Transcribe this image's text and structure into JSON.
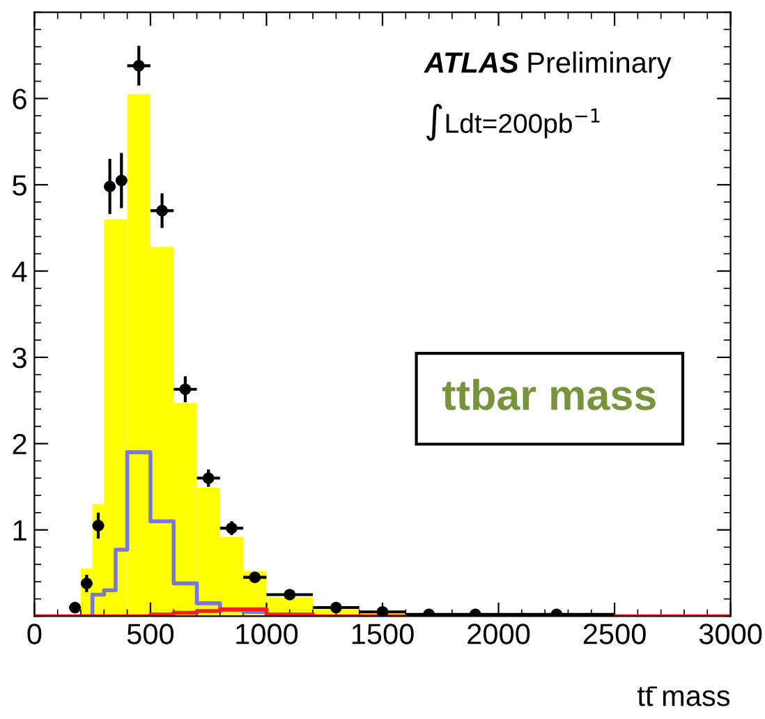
{
  "chart_data": {
    "type": "histogram",
    "xlabel": "tt̄ mass",
    "annotations": [
      "ATLAS Preliminary",
      "∫Ldt=200pb$^{−1}$",
      "ttbar mass"
    ],
    "xlim": [
      0,
      3000
    ],
    "ylim": [
      0,
      7
    ],
    "xticks": [
      0,
      500,
      1000,
      1500,
      2000,
      2500,
      3000
    ],
    "yticks": [
      1,
      2,
      3,
      4,
      5,
      6
    ],
    "grid": false,
    "color": "#ffff00",
    "bins": [
      200,
      250,
      300,
      400,
      500,
      600,
      700,
      800,
      900,
      1000,
      1200,
      1400,
      1600,
      2000
    ],
    "values": [
      0.55,
      1.3,
      4.6,
      6.05,
      4.28,
      2.47,
      1.49,
      0.92,
      0.52,
      0.22,
      0.08,
      0.04,
      0.02
    ],
    "series": [
      {
        "type": "step",
        "color": "#7777dd",
        "x": [
          200,
          250,
          300,
          350,
          400,
          500,
          600,
          700,
          800,
          900,
          1000,
          1200
        ],
        "values": [
          0,
          0.25,
          0.3,
          0.77,
          1.9,
          1.1,
          0.38,
          0.15,
          0.07,
          0.05,
          0,
          0
        ]
      },
      {
        "type": "step",
        "color": "#ee2222",
        "x": [
          0,
          500,
          600,
          700,
          800,
          900,
          1000,
          1200,
          3000
        ],
        "values": [
          0,
          0.02,
          0.04,
          0.06,
          0.08,
          0.08,
          0.02,
          0,
          0
        ]
      },
      {
        "type": "scatter",
        "color": "#000000",
        "marker": "circle",
        "x": [
          175,
          225,
          275,
          325,
          375,
          450,
          550,
          650,
          750,
          850,
          950,
          1100,
          1300,
          1500,
          1700,
          1900,
          2250
        ],
        "values": [
          0.1,
          0.38,
          1.05,
          4.98,
          5.05,
          6.38,
          4.7,
          2.63,
          1.6,
          1.02,
          0.45,
          0.25,
          0.1,
          0.05,
          0.02,
          0.02,
          0.02
        ],
        "errors": [
          0.05,
          0.1,
          0.15,
          0.32,
          0.32,
          0.23,
          0.2,
          0.15,
          0.1,
          0.08,
          0.05,
          0.03,
          0.02,
          null,
          null,
          null,
          null
        ],
        "xerrors": [
          25,
          25,
          25,
          25,
          25,
          50,
          50,
          50,
          50,
          50,
          50,
          100,
          100,
          100,
          100,
          100,
          250
        ]
      }
    ]
  }
}
